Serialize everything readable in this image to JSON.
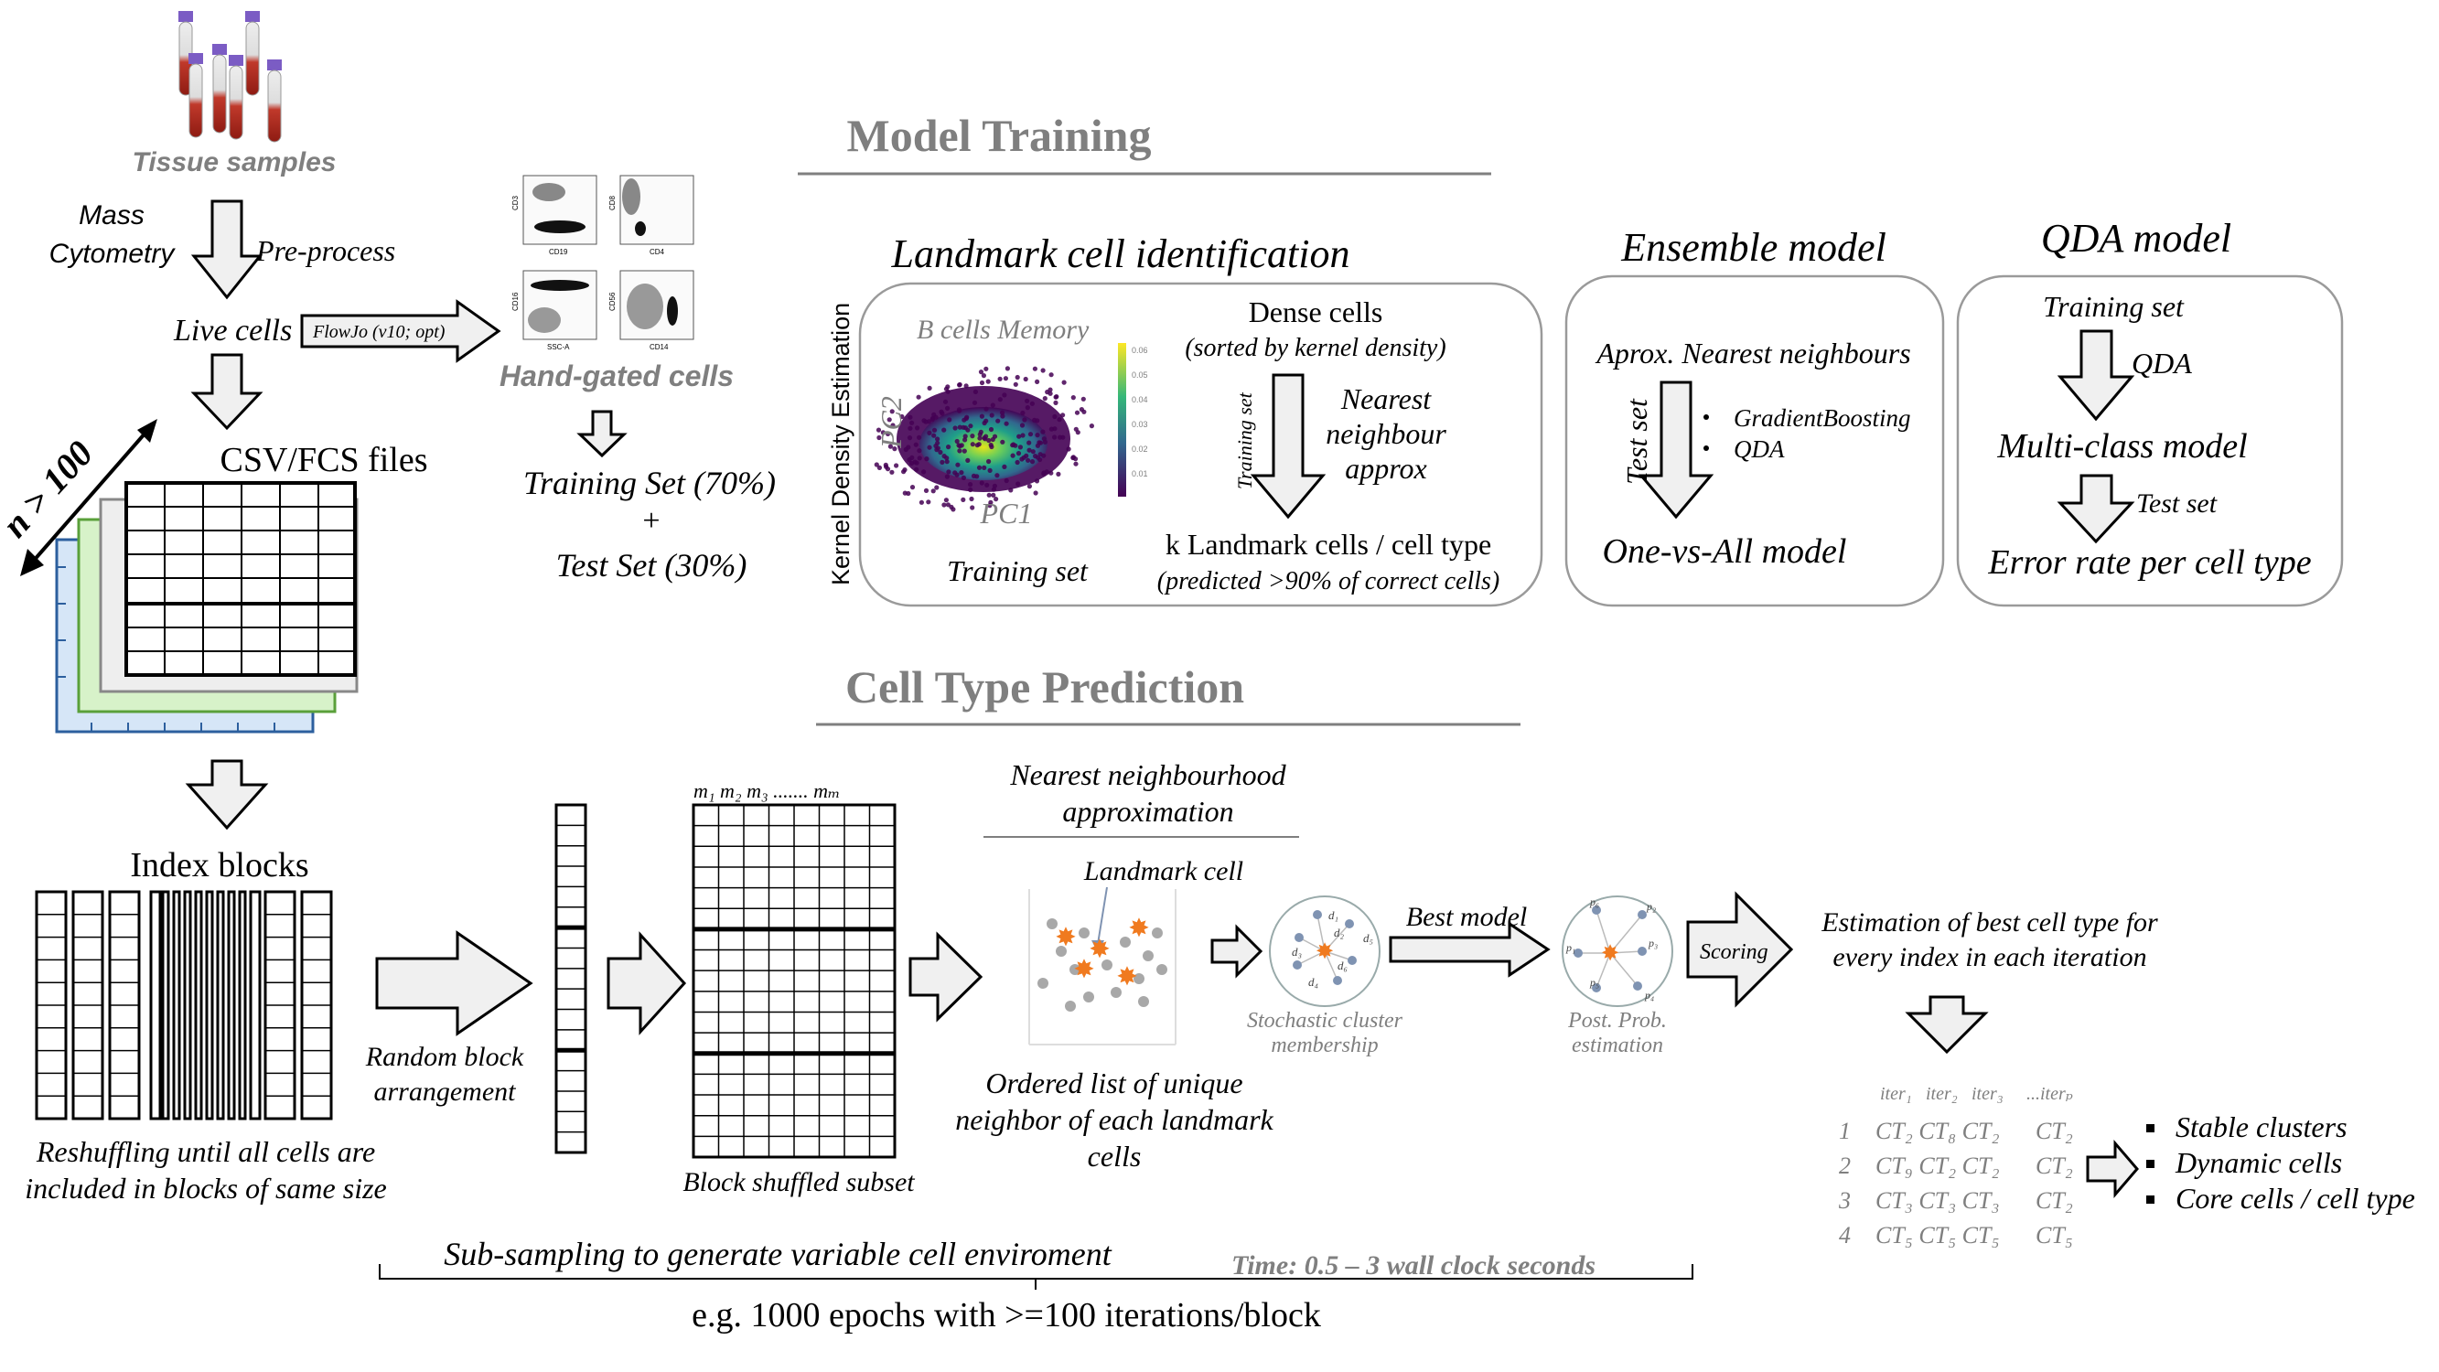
{
  "colors": {
    "accent_orange": "#f07a1f",
    "gray_text": "#7f7f7f",
    "dot_blue": "#7f93b2",
    "box_border": "#9a9a9a"
  },
  "left": {
    "tissue": "Tissue samples",
    "mass_cytometry_1": "Mass",
    "mass_cytometry_2": "Cytometry",
    "preprocess": "Pre-process",
    "live_cells": "Live cells",
    "flowjo": "FlowJo (v10; opt)",
    "hand_gated": "Hand-gated cells",
    "training_set_split": "Training Set (70%)",
    "plus": "+",
    "test_set_split": "Test Set (30%)",
    "n_label": "n > 100",
    "csv_fcs": "CSV/FCS files",
    "index_blocks": "Index blocks",
    "reshuffle_1": "Reshuffling until all cells are",
    "reshuffle_2": "included in blocks of same size",
    "random_block_1": "Random block",
    "random_block_2": "arrangement",
    "block_shuffled": "Block shuffled subset",
    "m_labels": "m₁ m₂ m₃ ....... mₘ",
    "gate_axis_labels": [
      "CD3",
      "CD19",
      "CD8",
      "CD4",
      "CD16",
      "SSC-A",
      "CD56",
      "CD14"
    ]
  },
  "training": {
    "section_title": "Model Training",
    "landmark_title": "Landmark cell identification",
    "kde_axis": "Kernel Density Estimation",
    "b_cells_memory": "B cells Memory",
    "pc2": "PC2",
    "pc1": "PC1",
    "training_set": "Training set",
    "colorbar_ticks": [
      "0.06",
      "0.05",
      "0.04",
      "0.03",
      "0.02",
      "0.01"
    ],
    "dense_cells": "Dense cells",
    "sorted_by": "(sorted by kernel density)",
    "training_set_vertical": "Training set",
    "nearest_1": "Nearest",
    "nearest_2": "neighbour",
    "nearest_3": "approx",
    "k_landmark": "k Landmark cells / cell type",
    "predicted": "(predicted >90% of correct cells)",
    "ensemble_title": "Ensemble model",
    "aprox_nn": "Aprox. Nearest neighbours",
    "test_set_vertical": "Test set",
    "bullets": [
      "GradientBoosting",
      "QDA"
    ],
    "one_vs_all": "One-vs-All model",
    "qda_title": "QDA model",
    "qda_training_set": "Training set",
    "qda_label": "QDA",
    "multiclass": "Multi-class model",
    "qda_test_set": "Test set",
    "error_rate": "Error rate per cell type"
  },
  "prediction": {
    "section_title": "Cell Type Prediction",
    "nn_approx_1": "Nearest neighbourhood",
    "nn_approx_2": "approximation",
    "landmark_cell": "Landmark cell",
    "ordered_1": "Ordered list of unique",
    "ordered_2": "neighbor of each landmark",
    "ordered_3": "cells",
    "stochastic_1": "Stochastic cluster",
    "stochastic_2": "membership",
    "best_model": "Best model",
    "post_prob_1": "Post. Prob.",
    "post_prob_2": "estimation",
    "scoring": "Scoring",
    "estimation_1": "Estimation of best cell type for",
    "estimation_2": "every index in each iteration",
    "iter_header": [
      "iter₁",
      "iter₂",
      "iter₃",
      "...iterₚ"
    ],
    "rows": [
      {
        "idx": "1",
        "cells": "CT₂ CT₈ CT₂",
        "last": "CT₂"
      },
      {
        "idx": "2",
        "cells": "CT₉ CT₂ CT₂",
        "last": "CT₂"
      },
      {
        "idx": "3",
        "cells": "CT₃ CT₃ CT₃",
        "last": "CT₂"
      },
      {
        "idx": "4",
        "cells": "CT₅ CT₅ CT₅",
        "last": "CT₅"
      }
    ],
    "outcomes": [
      "Stable clusters",
      "Dynamic cells",
      "Core cells / cell type"
    ],
    "d_labels": [
      "d₁",
      "d₂",
      "d₃",
      "d₄",
      "d₅",
      "d₆"
    ],
    "p_labels": [
      "p₁",
      "p₂",
      "p₃",
      "p₄",
      "p₅",
      "p₆"
    ]
  },
  "bottom": {
    "subsampling": "Sub-sampling to generate variable cell enviroment",
    "time": "Time: 0.5 – 3 wall clock seconds",
    "epochs": "e.g. 1000 epochs with >=100 iterations/block"
  }
}
